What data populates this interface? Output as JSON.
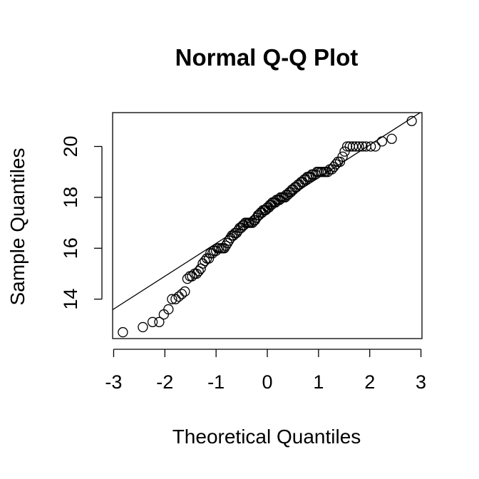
{
  "chart_data": {
    "type": "scatter",
    "title": "Normal Q-Q Plot",
    "xlabel": "Theoretical Quantiles",
    "ylabel": "Sample Quantiles",
    "xlim": [
      -3.02,
      3.02
    ],
    "ylim": [
      12.45,
      21.33
    ],
    "x_ticks": [
      -3,
      -2,
      -1,
      0,
      1,
      2,
      3
    ],
    "y_ticks": [
      14,
      16,
      18,
      20
    ],
    "grid": false,
    "reference_line": {
      "intercept": 17.48,
      "slope": 1.29
    },
    "series": [
      {
        "points": [
          [
            -2.82,
            12.7
          ],
          [
            -2.43,
            12.9
          ],
          [
            -2.24,
            13.1
          ],
          [
            -2.11,
            13.1
          ],
          [
            -2.02,
            13.4
          ],
          [
            -1.93,
            13.6
          ],
          [
            -1.86,
            14.0
          ],
          [
            -1.79,
            14.0
          ],
          [
            -1.73,
            14.1
          ],
          [
            -1.67,
            14.2
          ],
          [
            -1.61,
            14.3
          ],
          [
            -1.56,
            14.8
          ],
          [
            -1.51,
            14.9
          ],
          [
            -1.47,
            14.9
          ],
          [
            -1.42,
            15.0
          ],
          [
            -1.38,
            15.0
          ],
          [
            -1.34,
            15.1
          ],
          [
            -1.3,
            15.2
          ],
          [
            -1.26,
            15.4
          ],
          [
            -1.22,
            15.5
          ],
          [
            -1.18,
            15.6
          ],
          [
            -1.14,
            15.6
          ],
          [
            -1.11,
            15.8
          ],
          [
            -1.07,
            15.8
          ],
          [
            -1.04,
            15.9
          ],
          [
            -1.0,
            15.9
          ],
          [
            -0.97,
            16.0
          ],
          [
            -0.94,
            16.0
          ],
          [
            -0.9,
            16.0
          ],
          [
            -0.87,
            16.0
          ],
          [
            -0.84,
            16.0
          ],
          [
            -0.81,
            16.1
          ],
          [
            -0.78,
            16.2
          ],
          [
            -0.75,
            16.3
          ],
          [
            -0.72,
            16.4
          ],
          [
            -0.69,
            16.5
          ],
          [
            -0.66,
            16.5
          ],
          [
            -0.63,
            16.6
          ],
          [
            -0.6,
            16.6
          ],
          [
            -0.57,
            16.7
          ],
          [
            -0.54,
            16.8
          ],
          [
            -0.51,
            16.8
          ],
          [
            -0.48,
            16.9
          ],
          [
            -0.46,
            16.9
          ],
          [
            -0.43,
            17.0
          ],
          [
            -0.4,
            17.0
          ],
          [
            -0.37,
            17.0
          ],
          [
            -0.35,
            17.0
          ],
          [
            -0.32,
            17.0
          ],
          [
            -0.29,
            17.0
          ],
          [
            -0.26,
            17.1
          ],
          [
            -0.24,
            17.1
          ],
          [
            -0.21,
            17.2
          ],
          [
            -0.18,
            17.3
          ],
          [
            -0.16,
            17.3
          ],
          [
            -0.13,
            17.4
          ],
          [
            -0.1,
            17.4
          ],
          [
            -0.08,
            17.5
          ],
          [
            -0.05,
            17.5
          ],
          [
            -0.03,
            17.5
          ],
          [
            0.0,
            17.6
          ],
          [
            0.03,
            17.6
          ],
          [
            0.05,
            17.7
          ],
          [
            0.08,
            17.7
          ],
          [
            0.1,
            17.8
          ],
          [
            0.13,
            17.8
          ],
          [
            0.16,
            17.8
          ],
          [
            0.18,
            17.9
          ],
          [
            0.21,
            17.9
          ],
          [
            0.24,
            17.9
          ],
          [
            0.26,
            18.0
          ],
          [
            0.29,
            18.0
          ],
          [
            0.32,
            18.0
          ],
          [
            0.35,
            18.0
          ],
          [
            0.37,
            18.1
          ],
          [
            0.4,
            18.1
          ],
          [
            0.43,
            18.2
          ],
          [
            0.46,
            18.2
          ],
          [
            0.48,
            18.3
          ],
          [
            0.51,
            18.3
          ],
          [
            0.54,
            18.4
          ],
          [
            0.57,
            18.4
          ],
          [
            0.6,
            18.5
          ],
          [
            0.63,
            18.5
          ],
          [
            0.66,
            18.6
          ],
          [
            0.69,
            18.6
          ],
          [
            0.72,
            18.7
          ],
          [
            0.75,
            18.7
          ],
          [
            0.78,
            18.8
          ],
          [
            0.81,
            18.8
          ],
          [
            0.84,
            18.8
          ],
          [
            0.87,
            18.9
          ],
          [
            0.9,
            18.9
          ],
          [
            0.94,
            18.9
          ],
          [
            0.97,
            19.0
          ],
          [
            1.0,
            19.0
          ],
          [
            1.04,
            19.0
          ],
          [
            1.07,
            19.0
          ],
          [
            1.11,
            19.0
          ],
          [
            1.14,
            19.0
          ],
          [
            1.18,
            19.0
          ],
          [
            1.22,
            19.1
          ],
          [
            1.26,
            19.1
          ],
          [
            1.3,
            19.2
          ],
          [
            1.34,
            19.3
          ],
          [
            1.38,
            19.4
          ],
          [
            1.42,
            19.4
          ],
          [
            1.47,
            19.6
          ],
          [
            1.51,
            19.8
          ],
          [
            1.56,
            20.0
          ],
          [
            1.61,
            20.0
          ],
          [
            1.67,
            20.0
          ],
          [
            1.73,
            20.0
          ],
          [
            1.79,
            20.0
          ],
          [
            1.86,
            20.0
          ],
          [
            1.93,
            20.0
          ],
          [
            2.02,
            20.0
          ],
          [
            2.11,
            20.0
          ],
          [
            2.24,
            20.2
          ],
          [
            2.43,
            20.3
          ],
          [
            2.82,
            21.0
          ]
        ]
      }
    ]
  }
}
